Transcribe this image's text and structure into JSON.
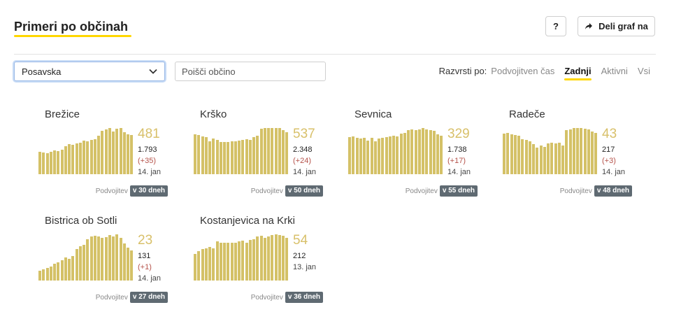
{
  "header": {
    "title": "Primeri po občinah",
    "help_label": "?",
    "share_label": "Deli graf na"
  },
  "filters": {
    "region_selected": "Posavska",
    "search_placeholder": "Poišči občino"
  },
  "sort": {
    "label": "Razvrsti po:",
    "options": [
      "Podvojitven čas",
      "Zadnji",
      "Aktivni",
      "Vsi"
    ],
    "active": "Zadnji"
  },
  "colors": {
    "bar": "#d4c167",
    "accent": "#ffd700",
    "delta": "#b5524a",
    "badge": "#5f6a72"
  },
  "municipalities": [
    {
      "name": "Brežice",
      "active": "481",
      "total": "1.793",
      "delta": "(+35)",
      "date": "14. jan",
      "doubling_label": "Podvojitev",
      "doubling_value": "v 30 dneh",
      "chart_data": {
        "type": "bar",
        "values": [
          30,
          29,
          28,
          30,
          32,
          31,
          33,
          38,
          40,
          39,
          41,
          42,
          45,
          44,
          46,
          47,
          52,
          58,
          60,
          62,
          57,
          61,
          62,
          56,
          54,
          53
        ]
      }
    },
    {
      "name": "Krško",
      "active": "537",
      "total": "2.348",
      "delta": "(+24)",
      "date": "14. jan",
      "doubling_label": "Podvojitev",
      "doubling_value": "v 50 dneh",
      "chart_data": {
        "type": "bar",
        "values": [
          51,
          50,
          48,
          47,
          42,
          46,
          44,
          41,
          41,
          41,
          42,
          42,
          43,
          44,
          45,
          44,
          47,
          49,
          58,
          59,
          59,
          59,
          59,
          59,
          56,
          54
        ]
      }
    },
    {
      "name": "Sevnica",
      "active": "329",
      "total": "1.738",
      "delta": "(+17)",
      "date": "14. jan",
      "doubling_label": "Podvojitev",
      "doubling_value": "v 55 dneh",
      "chart_data": {
        "type": "bar",
        "values": [
          48,
          49,
          47,
          46,
          47,
          44,
          47,
          43,
          46,
          47,
          48,
          49,
          50,
          49,
          53,
          54,
          57,
          58,
          57,
          58,
          60,
          58,
          57,
          56,
          52,
          50
        ]
      }
    },
    {
      "name": "Radeče",
      "active": "43",
      "total": "217",
      "delta": "(+3)",
      "date": "14. jan",
      "doubling_label": "Podvojitev",
      "doubling_value": "v 48 dneh",
      "chart_data": {
        "type": "bar",
        "values": [
          6,
          6.1,
          5.9,
          5.8,
          5.7,
          5.2,
          5.0,
          4.8,
          4.4,
          3.9,
          4.2,
          4.0,
          4.5,
          4.6,
          4.5,
          4.6,
          4.2,
          6.5,
          6.6,
          6.8,
          6.8,
          6.8,
          6.7,
          6.6,
          6.3,
          6.1
        ]
      }
    },
    {
      "name": "Bistrica ob Sotli",
      "active": "23",
      "total": "131",
      "delta": "(+1)",
      "date": "14. jan",
      "doubling_label": "Podvojitev",
      "doubling_value": "v 27 dneh",
      "chart_data": {
        "type": "bar",
        "values": [
          3.5,
          4.0,
          4.5,
          5.0,
          6.0,
          6.5,
          7.0,
          8.0,
          7.5,
          8.5,
          11.0,
          12.0,
          12.5,
          14.5,
          15.5,
          15.7,
          15.5,
          15.0,
          15.2,
          16.0,
          15.5,
          16.2,
          15.0,
          13.0,
          11.5,
          10.5
        ]
      }
    },
    {
      "name": "Kostanjevica na Krki",
      "active": "54",
      "total": "212",
      "delta": "",
      "date": "13. jan",
      "doubling_label": "Podvojitev",
      "doubling_value": "v 36 dneh",
      "chart_data": {
        "type": "bar",
        "values": [
          36,
          40,
          43,
          44,
          46,
          44,
          53,
          52,
          52,
          52,
          52,
          52,
          53,
          54,
          52,
          55,
          56,
          60,
          61,
          58,
          60,
          62,
          63,
          62,
          61,
          58
        ]
      }
    }
  ]
}
